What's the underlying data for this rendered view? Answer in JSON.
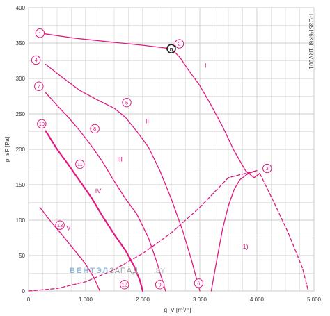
{
  "chart_data": {
    "type": "line",
    "xlabel": "q_V [m³/h]",
    "ylabel": "p_sF [Pa]",
    "xlim": [
      0,
      5000
    ],
    "ylim": [
      0,
      400
    ],
    "x_ticks": [
      {
        "value": 0,
        "label": "0"
      },
      {
        "value": 1000,
        "label": "1.000"
      },
      {
        "value": 2000,
        "label": "2.000"
      },
      {
        "value": 3000,
        "label": "3.000"
      },
      {
        "value": 4000,
        "label": "4.000"
      },
      {
        "value": 5000,
        "label": "5.000"
      }
    ],
    "y_ticks": [
      {
        "value": 0,
        "label": "0"
      },
      {
        "value": 50,
        "label": "50"
      },
      {
        "value": 100,
        "label": "100"
      },
      {
        "value": 150,
        "label": "150"
      },
      {
        "value": 200,
        "label": "200"
      },
      {
        "value": 250,
        "label": "250"
      },
      {
        "value": 300,
        "label": "300"
      },
      {
        "value": 350,
        "label": "350"
      },
      {
        "value": 400,
        "label": "400"
      }
    ],
    "grid": true,
    "model": "RG35P6K6F1RV001",
    "watermark": {
      "part1": "ВЕНТЭЛ",
      "part2": "ЗАПАД",
      "part3": ".BY"
    },
    "colors": {
      "curve": "#e0187f",
      "grid": "#cccccc",
      "marker_fill": "#ffffff",
      "op_point": "#222222"
    },
    "series": [
      {
        "name": "I",
        "style": "solid",
        "points": [
          [
            200,
            364
          ],
          [
            800,
            357
          ],
          [
            1500,
            351
          ],
          [
            2000,
            347
          ],
          [
            2400,
            343
          ],
          [
            2500,
            342
          ],
          [
            2650,
            330
          ],
          [
            2800,
            312
          ],
          [
            3000,
            290
          ],
          [
            3200,
            262
          ],
          [
            3400,
            232
          ],
          [
            3600,
            198
          ],
          [
            3800,
            170
          ],
          [
            3950,
            160
          ],
          [
            4050,
            166
          ]
        ]
      },
      {
        "name": "I (dashed)",
        "style": "dashed",
        "points": [
          [
            4050,
            166
          ],
          [
            4300,
            125
          ],
          [
            4550,
            82
          ],
          [
            4800,
            32
          ],
          [
            4900,
            0
          ]
        ]
      },
      {
        "name": "II",
        "style": "solid",
        "points": [
          [
            300,
            320
          ],
          [
            600,
            301
          ],
          [
            900,
            283
          ],
          [
            1200,
            270
          ],
          [
            1500,
            258
          ],
          [
            1700,
            245
          ],
          [
            1900,
            225
          ],
          [
            2100,
            203
          ],
          [
            2300,
            170
          ],
          [
            2500,
            130
          ],
          [
            2700,
            85
          ],
          [
            2850,
            45
          ],
          [
            3000,
            0
          ]
        ]
      },
      {
        "name": "III",
        "style": "solid",
        "points": [
          [
            300,
            280
          ],
          [
            500,
            262
          ],
          [
            700,
            245
          ],
          [
            900,
            226
          ],
          [
            1100,
            205
          ],
          [
            1300,
            182
          ],
          [
            1500,
            155
          ],
          [
            1700,
            130
          ],
          [
            1900,
            108
          ],
          [
            2100,
            75
          ],
          [
            2250,
            40
          ],
          [
            2400,
            0
          ]
        ]
      },
      {
        "name": "IV",
        "style": "solid",
        "points": [
          [
            300,
            226
          ],
          [
            500,
            200
          ],
          [
            700,
            178
          ],
          [
            900,
            155
          ],
          [
            1100,
            132
          ],
          [
            1300,
            105
          ],
          [
            1500,
            80
          ],
          [
            1700,
            57
          ],
          [
            1850,
            35
          ],
          [
            1950,
            15
          ],
          [
            2000,
            0
          ]
        ]
      },
      {
        "name": "V",
        "style": "solid",
        "points": [
          [
            200,
            118
          ],
          [
            400,
            97
          ],
          [
            600,
            78
          ],
          [
            800,
            58
          ],
          [
            1000,
            38
          ],
          [
            1150,
            18
          ],
          [
            1250,
            0
          ]
        ]
      },
      {
        "name": "system curve",
        "style": "dashed",
        "points": [
          [
            0,
            0
          ],
          [
            500,
            3.5
          ],
          [
            1000,
            13
          ],
          [
            1500,
            30
          ],
          [
            2000,
            53
          ],
          [
            2500,
            82
          ],
          [
            3000,
            118
          ],
          [
            3500,
            160
          ],
          [
            4000,
            170
          ]
        ]
      },
      {
        "name": "1)",
        "style": "solid",
        "points": [
          [
            3200,
            0
          ],
          [
            3300,
            45
          ],
          [
            3400,
            88
          ],
          [
            3500,
            120
          ],
          [
            3600,
            143
          ],
          [
            3700,
            157
          ],
          [
            3850,
            166
          ],
          [
            4000,
            170
          ]
        ]
      }
    ],
    "roman_labels": [
      {
        "text": "I",
        "x": 3100,
        "y": 315
      },
      {
        "text": "II",
        "x": 2080,
        "y": 237
      },
      {
        "text": "III",
        "x": 1600,
        "y": 183
      },
      {
        "text": "IV",
        "x": 1220,
        "y": 138
      },
      {
        "text": "V",
        "x": 700,
        "y": 86
      },
      {
        "text": "1)",
        "x": 3800,
        "y": 60
      }
    ],
    "markers": [
      {
        "text": "1",
        "x": 200,
        "y": 364
      },
      {
        "text": "2",
        "x": 2640,
        "y": 349
      },
      {
        "text": "3",
        "x": 4180,
        "y": 173
      },
      {
        "text": "4",
        "x": 130,
        "y": 326
      },
      {
        "text": "5",
        "x": 1720,
        "y": 266
      },
      {
        "text": "6",
        "x": 2980,
        "y": 11
      },
      {
        "text": "7",
        "x": 180,
        "y": 289
      },
      {
        "text": "8",
        "x": 1160,
        "y": 229
      },
      {
        "text": "9",
        "x": 2300,
        "y": 9
      },
      {
        "text": "10",
        "x": 230,
        "y": 236
      },
      {
        "text": "11",
        "x": 900,
        "y": 179
      },
      {
        "text": "12",
        "x": 1680,
        "y": 9
      },
      {
        "text": "13",
        "x": 550,
        "y": 93
      }
    ],
    "operating_point": {
      "label": "η",
      "x": 2500,
      "y": 342
    }
  }
}
